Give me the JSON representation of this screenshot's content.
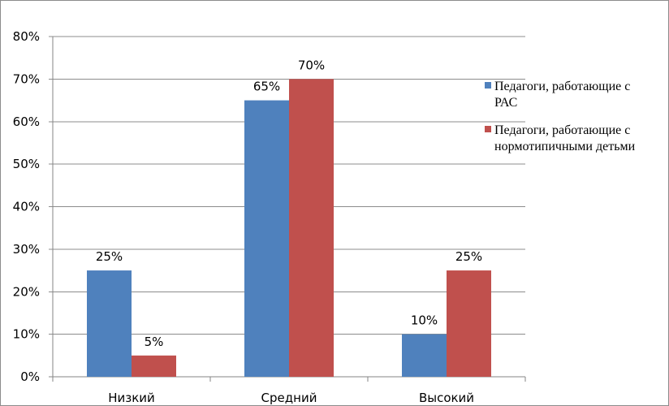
{
  "chart_data": {
    "type": "bar",
    "categories": [
      "Низкий",
      "Средний",
      "Высокий"
    ],
    "series": [
      {
        "name": "Педагоги, работающие с РАС",
        "values": [
          25,
          65,
          10
        ],
        "labels": [
          "25%",
          "65%",
          "10%"
        ],
        "color": "#4f81bd"
      },
      {
        "name": "Педагоги, работающие с нормотипичными детьми",
        "values": [
          5,
          70,
          25
        ],
        "labels": [
          "5%",
          "70%",
          "25%"
        ],
        "color": "#c0504d"
      }
    ],
    "ylim": [
      0,
      80
    ],
    "yticks": [
      0,
      10,
      20,
      30,
      40,
      50,
      60,
      70,
      80
    ],
    "ytick_labels": [
      "0%",
      "10%",
      "20%",
      "30%",
      "40%",
      "50%",
      "60%",
      "70%",
      "80%"
    ],
    "grid": true,
    "legend_position": "right",
    "legend": [
      {
        "line1": "Педагоги, работающие с",
        "line2": "РАС"
      },
      {
        "line1": "Педагоги, работающие с",
        "line2": "нормотипичными детьми"
      }
    ],
    "title": "",
    "xlabel": "",
    "ylabel": ""
  }
}
